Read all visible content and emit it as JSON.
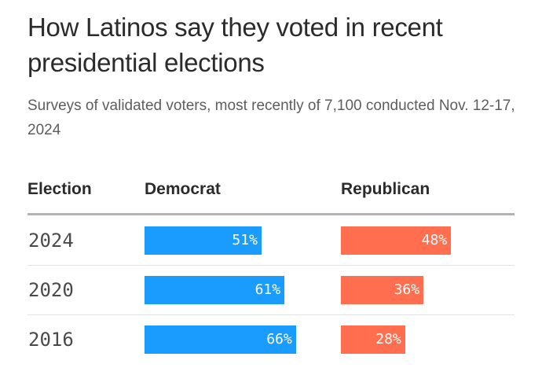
{
  "title": "How Latinos say they voted in recent presidential elections",
  "subtitle": "Surveys of validated voters, most recently of 7,100 conducted Nov. 12-17, 2024",
  "colors": {
    "democrat": "#1a9cff",
    "republican": "#ff6f4f"
  },
  "chart_data": {
    "type": "table",
    "title": "How Latinos say they voted in recent presidential elections",
    "subtitle": "Surveys of validated voters, most recently of 7,100 conducted Nov. 12-17, 2024",
    "columns": [
      "Election",
      "Democrat",
      "Republican"
    ],
    "categories": [
      "2024",
      "2020",
      "2016"
    ],
    "series": [
      {
        "name": "Democrat",
        "values": [
          51,
          61,
          66
        ],
        "labels": [
          "51%",
          "61%",
          "66%"
        ]
      },
      {
        "name": "Republican",
        "values": [
          48,
          36,
          28
        ],
        "labels": [
          "48%",
          "36%",
          "28%"
        ]
      }
    ]
  }
}
